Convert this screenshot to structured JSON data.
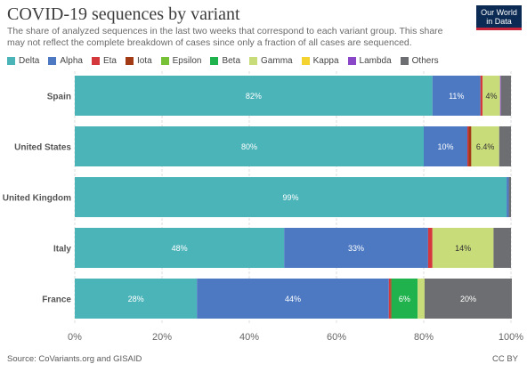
{
  "header": {
    "title": "COVID-19 sequences by variant",
    "subtitle": "The share of analyzed sequences in the last two weeks that correspond to each variant group. This share may not reflect the complete breakdown of cases since only a fraction of all cases are sequenced.",
    "logo_line1": "Our World",
    "logo_line2": "in Data"
  },
  "footer": {
    "source": "Source: CoVariants.org and GISAID",
    "license": "CC BY"
  },
  "colors": {
    "Delta": "#4bb4b9",
    "Alpha": "#4c79c2",
    "Eta": "#d4383d",
    "Iota": "#a23a16",
    "Epsilon": "#76c136",
    "Beta": "#20b24d",
    "Gamma": "#c8dc7a",
    "Kappa": "#f4d230",
    "Lambda": "#8a48c8",
    "Others": "#6d6e71"
  },
  "chart_data": {
    "type": "bar",
    "orientation": "horizontal",
    "stacked": true,
    "categories": [
      "Spain",
      "United States",
      "United Kingdom",
      "Italy",
      "France"
    ],
    "legend": [
      "Delta",
      "Alpha",
      "Eta",
      "Iota",
      "Epsilon",
      "Beta",
      "Gamma",
      "Kappa",
      "Lambda",
      "Others"
    ],
    "legend_position": "top",
    "series": [
      {
        "name": "Delta",
        "values": [
          82,
          80,
          99,
          48,
          28
        ]
      },
      {
        "name": "Alpha",
        "values": [
          11,
          10,
          0.5,
          33,
          44
        ]
      },
      {
        "name": "Eta",
        "values": [
          0.5,
          0.3,
          0,
          1,
          0.3
        ]
      },
      {
        "name": "Iota",
        "values": [
          0,
          0.6,
          0,
          0,
          0.3
        ]
      },
      {
        "name": "Epsilon",
        "values": [
          0,
          0,
          0,
          0,
          0
        ]
      },
      {
        "name": "Beta",
        "values": [
          0,
          0,
          0,
          0,
          6
        ]
      },
      {
        "name": "Gamma",
        "values": [
          4,
          6.4,
          0,
          14,
          1.6
        ]
      },
      {
        "name": "Kappa",
        "values": [
          0,
          0,
          0,
          0,
          0
        ]
      },
      {
        "name": "Lambda",
        "values": [
          0.2,
          0,
          0,
          0,
          0
        ]
      },
      {
        "name": "Others",
        "values": [
          2.3,
          2.7,
          0.5,
          4,
          20
        ]
      }
    ],
    "data_labels": [
      [
        "82%",
        "11%",
        "",
        "",
        "",
        "",
        "4%",
        "",
        "",
        ""
      ],
      [
        "80%",
        "10%",
        "",
        "",
        "",
        "",
        "6.4%",
        "",
        "",
        ""
      ],
      [
        "99%",
        "",
        "",
        "",
        "",
        "",
        "",
        "",
        "",
        ""
      ],
      [
        "48%",
        "33%",
        "",
        "",
        "",
        "",
        "14%",
        "",
        "",
        ""
      ],
      [
        "28%",
        "44%",
        "",
        "",
        "",
        "6%",
        "",
        "",
        "",
        "20%"
      ]
    ],
    "x_ticks": [
      "0%",
      "20%",
      "40%",
      "60%",
      "80%",
      "100%"
    ],
    "xlim": [
      0,
      100
    ],
    "grid": true
  }
}
